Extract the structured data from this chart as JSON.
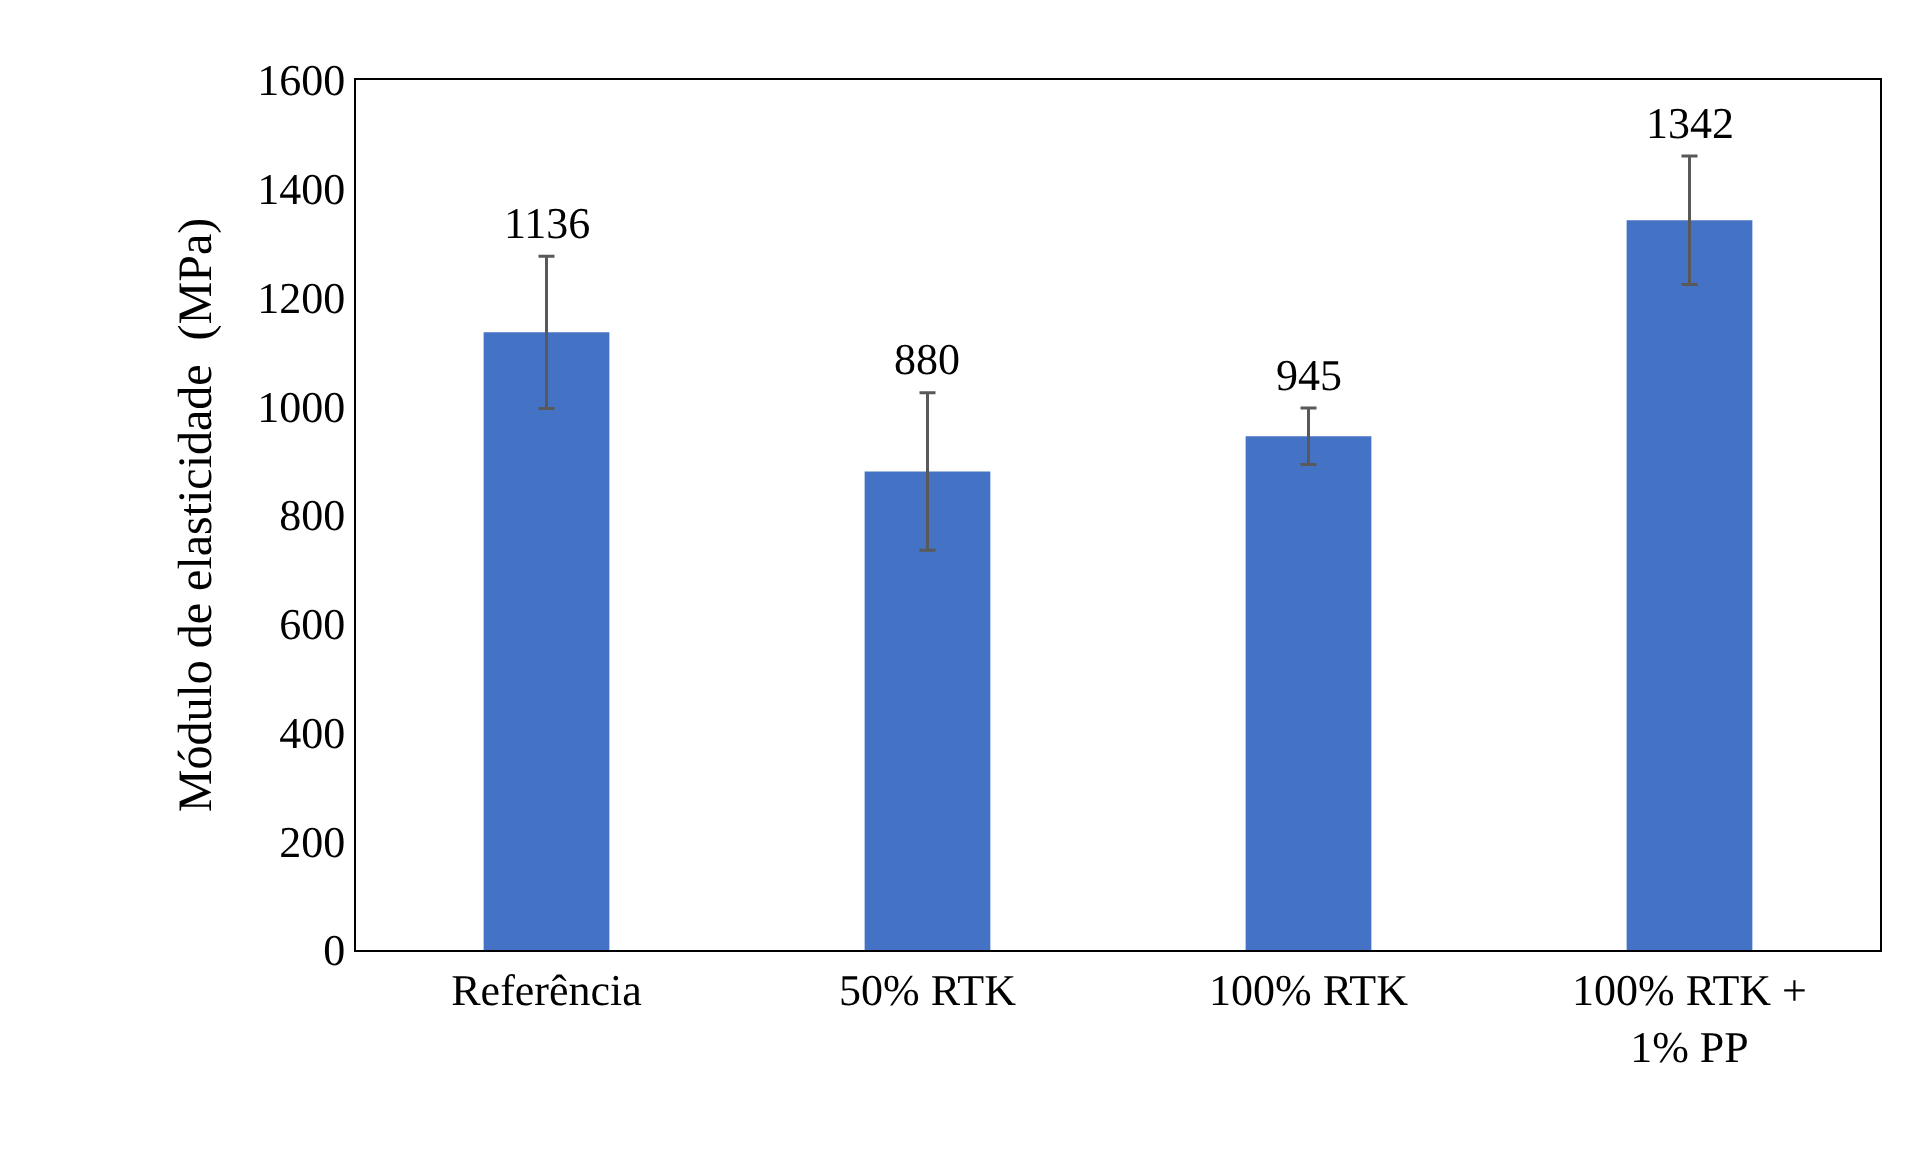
{
  "chart_data": {
    "type": "bar",
    "ylabel": "Módulo de elasticidade  (MPa)",
    "categories": [
      "Referência",
      "50% RTK",
      "100% RTK",
      "100% RTK +\n1% PP"
    ],
    "values": [
      1136,
      880,
      945,
      1342
    ],
    "errors": [
      140,
      145,
      52,
      118
    ],
    "color": "#4472c4",
    "ylim": [
      0,
      1600
    ],
    "yticks": [
      0,
      200,
      400,
      600,
      800,
      1000,
      1200,
      1400,
      1600
    ],
    "data_labels": true,
    "legend": false
  }
}
